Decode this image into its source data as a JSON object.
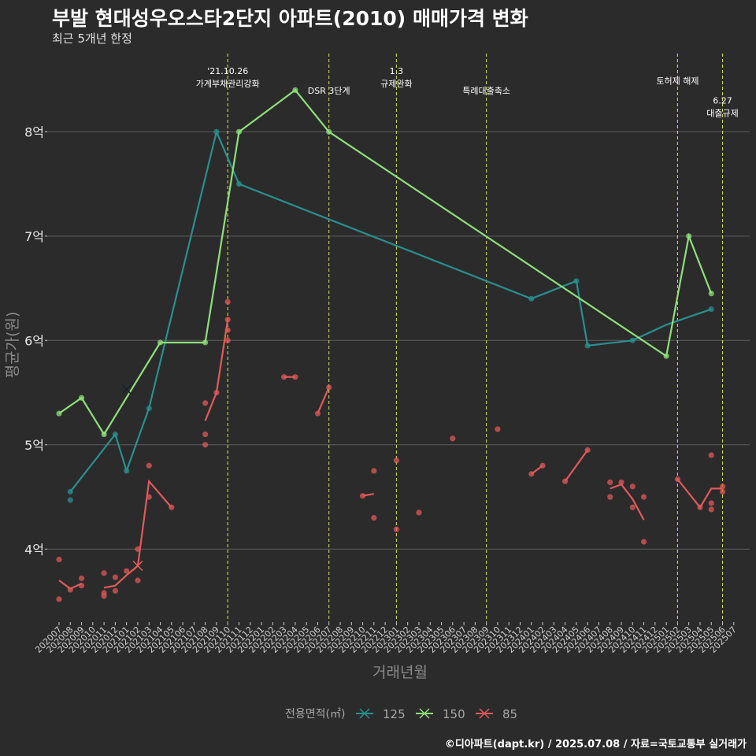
{
  "header": {
    "title": "부발 현대성우오스타2단지 아파트(2010) 매매가격 변화",
    "subtitle": "최근 5개년 한정"
  },
  "footer": {
    "credit": "©디아파트(dapt.kr) / 2025.07.08 / 자료=국토교통부 실거래가"
  },
  "colors": {
    "background": "#2b2b2b",
    "grid": "#5e5e5e",
    "event_line": "#e0e05a",
    "s125": "#2a8f8f",
    "s150": "#8ee07a",
    "s85": "#e05a5a"
  },
  "chart_data": {
    "type": "line",
    "xlabel": "거래년월",
    "ylabel": "평균가(원)",
    "ylim": [
      3.3,
      8.75
    ],
    "yticks": [
      {
        "value": 4,
        "label": "4억"
      },
      {
        "value": 5,
        "label": "5억"
      },
      {
        "value": 6,
        "label": "6억"
      },
      {
        "value": 7,
        "label": "7억"
      },
      {
        "value": 8,
        "label": "8억"
      }
    ],
    "categories": [
      "202007",
      "202008",
      "202009",
      "202010",
      "202011",
      "202012",
      "202101",
      "202102",
      "202103",
      "202104",
      "202105",
      "202106",
      "202107",
      "202108",
      "202109",
      "202110",
      "202111",
      "202112",
      "202201",
      "202202",
      "202203",
      "202204",
      "202205",
      "202206",
      "202207",
      "202208",
      "202209",
      "202210",
      "202211",
      "202212",
      "202301",
      "202302",
      "202303",
      "202304",
      "202305",
      "202306",
      "202307",
      "202308",
      "202309",
      "202310",
      "202311",
      "202312",
      "202401",
      "202402",
      "202403",
      "202404",
      "202405",
      "202406",
      "202407",
      "202408",
      "202409",
      "202410",
      "202411",
      "202412",
      "202501",
      "202502",
      "202503",
      "202504",
      "202505",
      "202506",
      "202507"
    ],
    "events": [
      {
        "x": "202110",
        "lines": [
          "'21.10.26",
          "가계부채관리강화"
        ],
        "row": 0
      },
      {
        "x": "202207",
        "lines": [
          "DSR 3단계"
        ],
        "row": 1
      },
      {
        "x": "202301",
        "lines": [
          "1.3",
          "규제완화"
        ],
        "row": 0
      },
      {
        "x": "202309",
        "lines": [
          "특례대출축소"
        ],
        "row": 1
      },
      {
        "x": "202502",
        "lines": [
          "토허제 해제"
        ],
        "row": 0.5
      },
      {
        "x": "202506",
        "lines": [
          "6.27",
          "대출규제"
        ],
        "row": 1.5
      }
    ],
    "legend": {
      "title": "전용면적(㎡)",
      "position": "bottom"
    },
    "series": [
      {
        "name": "125",
        "color_key": "s125",
        "line": [
          [
            "202008",
            4.55
          ],
          [
            "202012",
            5.1
          ],
          [
            "202101",
            4.75
          ],
          [
            "202103",
            5.35
          ],
          [
            "202109",
            8.0
          ],
          [
            "202111",
            7.5
          ],
          [
            "202401",
            6.4
          ],
          [
            "202405",
            6.57
          ],
          [
            "202406",
            5.95
          ],
          [
            "202410",
            6.0
          ],
          [
            "202501",
            6.15
          ],
          [
            "202505",
            6.3
          ]
        ],
        "points": [
          [
            "202008",
            4.55
          ],
          [
            "202008",
            4.47
          ],
          [
            "202012",
            5.1
          ],
          [
            "202101",
            4.75
          ],
          [
            "202103",
            5.35
          ],
          [
            "202109",
            8.0
          ],
          [
            "202111",
            7.5
          ],
          [
            "202401",
            6.4
          ],
          [
            "202405",
            6.57
          ],
          [
            "202406",
            5.95
          ],
          [
            "202410",
            6.0
          ],
          [
            "202505",
            6.3
          ]
        ],
        "crosses": [
          [
            "202101",
            5.53
          ]
        ]
      },
      {
        "name": "150",
        "color_key": "s150",
        "line": [
          [
            "202007",
            5.3
          ],
          [
            "202009",
            5.45
          ],
          [
            "202011",
            5.1
          ],
          [
            "202104",
            5.98
          ],
          [
            "202108",
            5.98
          ],
          [
            "202111",
            8.0
          ],
          [
            "202204",
            8.4
          ],
          [
            "202207",
            8.0
          ],
          [
            "202501",
            5.85
          ],
          [
            "202503",
            7.0
          ],
          [
            "202505",
            6.45
          ]
        ],
        "points": [
          [
            "202007",
            5.3
          ],
          [
            "202009",
            5.45
          ],
          [
            "202011",
            5.1
          ],
          [
            "202104",
            5.98
          ],
          [
            "202108",
            5.98
          ],
          [
            "202111",
            8.0
          ],
          [
            "202204",
            8.4
          ],
          [
            "202207",
            8.0
          ],
          [
            "202501",
            5.85
          ],
          [
            "202503",
            7.0
          ],
          [
            "202505",
            6.45
          ]
        ],
        "crosses": [
          [
            "202101",
            5.53
          ]
        ]
      },
      {
        "name": "85",
        "color_key": "s85",
        "line_segments": [
          [
            [
              "202007",
              3.7
            ],
            [
              "202008",
              3.62
            ],
            [
              "202009",
              3.67
            ]
          ],
          [
            [
              "202011",
              3.63
            ],
            [
              "202012",
              3.65
            ],
            [
              "202101",
              3.75
            ],
            [
              "202102",
              3.84
            ],
            [
              "202103",
              4.65
            ],
            [
              "202105",
              4.4
            ]
          ],
          [
            [
              "202108",
              5.23
            ],
            [
              "202109",
              5.5
            ],
            [
              "202110",
              6.2
            ]
          ],
          [
            [
              "202203",
              5.65
            ],
            [
              "202204",
              5.65
            ]
          ],
          [
            [
              "202206",
              5.3
            ],
            [
              "202207",
              5.55
            ]
          ],
          [
            [
              "202210",
              4.51
            ],
            [
              "202211",
              4.53
            ]
          ],
          [
            [
              "202401",
              4.72
            ],
            [
              "202402",
              4.8
            ]
          ],
          [
            [
              "202404",
              4.65
            ],
            [
              "202406",
              4.95
            ]
          ],
          [
            [
              "202408",
              4.58
            ],
            [
              "202409",
              4.62
            ],
            [
              "202410",
              4.48
            ],
            [
              "202411",
              4.28
            ]
          ],
          [
            [
              "202502",
              4.67
            ],
            [
              "202504",
              4.4
            ],
            [
              "202505",
              4.58
            ],
            [
              "202506",
              4.58
            ]
          ]
        ],
        "points": [
          [
            "202007",
            3.9
          ],
          [
            "202007",
            3.52
          ],
          [
            "202008",
            3.61
          ],
          [
            "202009",
            3.72
          ],
          [
            "202009",
            3.65
          ],
          [
            "202011",
            3.77
          ],
          [
            "202011",
            3.58
          ],
          [
            "202011",
            3.55
          ],
          [
            "202012",
            3.73
          ],
          [
            "202012",
            3.6
          ],
          [
            "202101",
            3.79
          ],
          [
            "202102",
            4.0
          ],
          [
            "202102",
            3.7
          ],
          [
            "202103",
            4.8
          ],
          [
            "202103",
            4.5
          ],
          [
            "202105",
            4.4
          ],
          [
            "202108",
            5.4
          ],
          [
            "202108",
            5.1
          ],
          [
            "202108",
            5.0
          ],
          [
            "202109",
            5.5
          ],
          [
            "202110",
            6.37
          ],
          [
            "202110",
            6.2
          ],
          [
            "202110",
            6.1
          ],
          [
            "202110",
            6.0
          ],
          [
            "202203",
            5.65
          ],
          [
            "202204",
            5.65
          ],
          [
            "202206",
            5.3
          ],
          [
            "202207",
            5.55
          ],
          [
            "202210",
            4.51
          ],
          [
            "202211",
            4.75
          ],
          [
            "202211",
            4.3
          ],
          [
            "202301",
            4.85
          ],
          [
            "202301",
            4.19
          ],
          [
            "202303",
            4.35
          ],
          [
            "202306",
            5.06
          ],
          [
            "202310",
            5.15
          ],
          [
            "202401",
            4.72
          ],
          [
            "202402",
            4.8
          ],
          [
            "202404",
            4.65
          ],
          [
            "202406",
            4.95
          ],
          [
            "202408",
            4.64
          ],
          [
            "202408",
            4.5
          ],
          [
            "202409",
            4.64
          ],
          [
            "202410",
            4.6
          ],
          [
            "202410",
            4.4
          ],
          [
            "202411",
            4.5
          ],
          [
            "202411",
            4.07
          ],
          [
            "202502",
            4.67
          ],
          [
            "202504",
            4.4
          ],
          [
            "202505",
            4.9
          ],
          [
            "202505",
            4.44
          ],
          [
            "202505",
            4.38
          ],
          [
            "202506",
            4.6
          ],
          [
            "202506",
            4.55
          ]
        ],
        "crosses": [
          [
            "202102",
            3.84
          ]
        ]
      }
    ]
  }
}
